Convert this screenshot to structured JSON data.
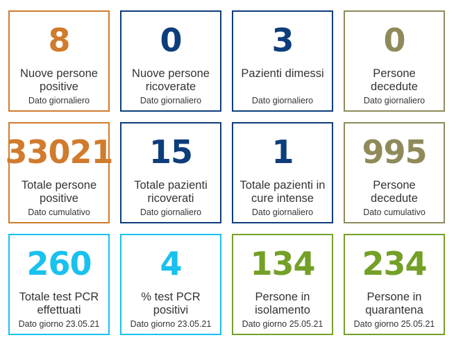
{
  "colors": {
    "orange": "#d07b2d",
    "navy": "#0d3d7b",
    "olive": "#8e8a5a",
    "cyan": "#18c1ee",
    "green": "#74a027"
  },
  "cards": [
    {
      "value": "8",
      "line1": "Nuove persone",
      "line2": "positive",
      "sub": "Dato giornaliero",
      "color": "orange"
    },
    {
      "value": "0",
      "line1": "Nuove persone",
      "line2": "ricoverate",
      "sub": "Dato giornaliero",
      "color": "navy"
    },
    {
      "value": "3",
      "line1": "Pazienti dimessi",
      "line2": "",
      "sub": "Dato giornaliero",
      "color": "navy"
    },
    {
      "value": "0",
      "line1": "Persone",
      "line2": "decedute",
      "sub": "Dato giornaliero",
      "color": "olive"
    },
    {
      "value": "33021",
      "line1": "Totale persone",
      "line2": "positive",
      "sub": "Dato cumulativo",
      "color": "orange"
    },
    {
      "value": "15",
      "line1": "Totale pazienti",
      "line2": "ricoverati",
      "sub": "Dato giornaliero",
      "color": "navy"
    },
    {
      "value": "1",
      "line1": "Totale pazienti in",
      "line2": "cure intense",
      "sub": "Dato giornaliero",
      "color": "navy"
    },
    {
      "value": "995",
      "line1": "Persone",
      "line2": "decedute",
      "sub": "Dato cumulativo",
      "color": "olive"
    },
    {
      "value": "260",
      "line1": "Totale test PCR",
      "line2": "effettuati",
      "sub": "Dato giorno 23.05.21",
      "color": "cyan"
    },
    {
      "value": "4",
      "line1": "% test PCR",
      "line2": "positivi",
      "sub": "Dato giorno 23.05.21",
      "color": "cyan"
    },
    {
      "value": "134",
      "line1": "Persone in",
      "line2": "isolamento",
      "sub": "Dato giorno 25.05.21",
      "color": "green"
    },
    {
      "value": "234",
      "line1": "Persone in",
      "line2": "quarantena",
      "sub": "Dato giorno 25.05.21",
      "color": "green"
    }
  ]
}
